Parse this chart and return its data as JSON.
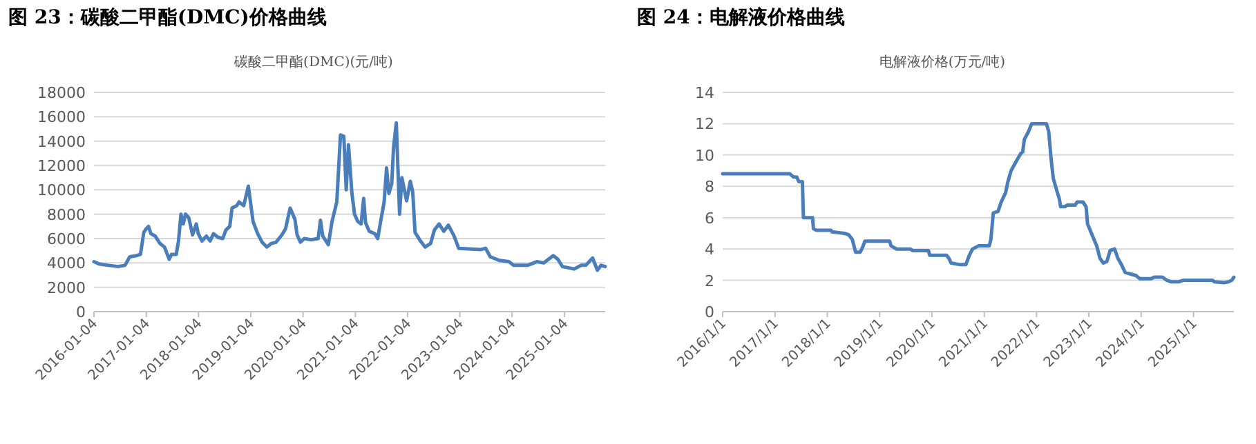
{
  "chart_data": [
    {
      "type": "line",
      "title": "图 23：碳酸二甲酯(DMC)价格曲线",
      "subtitle": "碳酸二甲酯(DMC)(元/吨)",
      "grid": "y",
      "color": "#4a7ebb",
      "x": [
        "2016-01-04",
        "2016-02-12",
        "2016-04-16",
        "2016-06-20",
        "2016-08-08",
        "2016-09-10",
        "2016-10-29",
        "2016-11-24",
        "2016-12-17",
        "2017-01-03",
        "2017-01-19",
        "2017-02-05",
        "2017-03-07",
        "2017-04-09",
        "2017-05-11",
        "2017-05-27",
        "2017-06-13",
        "2017-06-29",
        "2017-08-01",
        "2017-08-17",
        "2017-09-03",
        "2017-09-19",
        "2017-10-05",
        "2017-10-28",
        "2017-11-23",
        "2017-12-19",
        "2018-01-02",
        "2018-01-28",
        "2018-02-28",
        "2018-03-26",
        "2018-04-18",
        "2018-05-20",
        "2018-06-22",
        "2018-07-14",
        "2018-08-10",
        "2018-08-26",
        "2018-09-28",
        "2018-10-14",
        "2018-11-16",
        "2018-12-02",
        "2018-12-18",
        "2019-01-04",
        "2019-01-20",
        "2019-02-21",
        "2019-03-24",
        "2019-04-26",
        "2019-05-28",
        "2019-06-30",
        "2019-08-09",
        "2019-09-04",
        "2019-10-06",
        "2019-11-08",
        "2019-11-24",
        "2019-12-17",
        "2020-01-13",
        "2020-03-01",
        "2020-04-19",
        "2020-05-05",
        "2020-05-21",
        "2020-06-29",
        "2020-07-25",
        "2020-08-27",
        "2020-09-22",
        "2020-10-15",
        "2020-11-01",
        "2020-11-17",
        "2020-12-10",
        "2020-12-29",
        "2021-01-21",
        "2021-02-13",
        "2021-03-03",
        "2021-03-16",
        "2021-04-11",
        "2021-05-20",
        "2021-06-09",
        "2021-07-01",
        "2021-07-24",
        "2021-08-10",
        "2021-08-26",
        "2021-09-15",
        "2021-09-28",
        "2021-10-17",
        "2021-11-09",
        "2021-11-25",
        "2021-12-28",
        "2022-01-23",
        "2022-02-09",
        "2022-02-25",
        "2022-04-04",
        "2022-05-06",
        "2022-06-14",
        "2022-07-10",
        "2022-08-12",
        "2022-09-14",
        "2022-10-16",
        "2022-11-25",
        "2022-12-27",
        "2023-06-01",
        "2023-07-03",
        "2023-08-05",
        "2023-10-09",
        "2023-12-13",
        "2024-01-15",
        "2024-04-21",
        "2024-06-25",
        "2024-08-13",
        "2024-09-15",
        "2024-10-18",
        "2024-11-19",
        "2024-12-21",
        "2025-03-12",
        "2025-04-30",
        "2025-06-02",
        "2025-07-20",
        "2025-08-22",
        "2025-09-17",
        "2025-10-16"
      ],
      "values": [
        4100,
        3900,
        3800,
        3700,
        3800,
        4500,
        4600,
        4700,
        6500,
        6800,
        7000,
        6400,
        6200,
        5600,
        5300,
        4800,
        4300,
        4700,
        4700,
        5800,
        8000,
        7200,
        8000,
        7700,
        6300,
        7200,
        6400,
        5800,
        6200,
        5800,
        6400,
        6100,
        6000,
        6700,
        7000,
        8500,
        8700,
        9000,
        8700,
        9500,
        10300,
        8800,
        7400,
        6400,
        5700,
        5300,
        5600,
        5700,
        6300,
        6800,
        8500,
        7600,
        6300,
        5700,
        6000,
        5900,
        6000,
        7500,
        6200,
        5500,
        7400,
        9000,
        14500,
        14400,
        10000,
        13700,
        9800,
        8000,
        7400,
        7200,
        9300,
        7300,
        6600,
        6400,
        6000,
        7500,
        9000,
        11800,
        9700,
        10500,
        13500,
        15500,
        8000,
        11000,
        9100,
        10700,
        9800,
        6500,
        5800,
        5300,
        5600,
        6700,
        7200,
        6600,
        7100,
        6200,
        5200,
        5100,
        5200,
        4500,
        4200,
        4100,
        3800,
        3800,
        4100,
        4000,
        4300,
        4600,
        4300,
        3700,
        3500,
        3800,
        3800,
        4400,
        3400,
        3800,
        3700
      ],
      "xlim": [
        "2016-01-04",
        "2025-10-16"
      ],
      "ylim": [
        0,
        18000
      ],
      "yticks": [
        0,
        2000,
        4000,
        6000,
        8000,
        10000,
        12000,
        14000,
        16000,
        18000
      ],
      "xticks": [
        {
          "value": "2016-01-04",
          "label": "2016-01-04"
        },
        {
          "value": "2017-01-04",
          "label": "2017-01-04"
        },
        {
          "value": "2018-01-04",
          "label": "2018-01-04"
        },
        {
          "value": "2019-01-04",
          "label": "2019-01-04"
        },
        {
          "value": "2020-01-04",
          "label": "2020-01-04"
        },
        {
          "value": "2021-01-04",
          "label": "2021-01-04"
        },
        {
          "value": "2022-01-04",
          "label": "2022-01-04"
        },
        {
          "value": "2023-01-04",
          "label": "2023-01-04"
        },
        {
          "value": "2024-01-04",
          "label": "2024-01-04"
        },
        {
          "value": "2025-01-04",
          "label": "2025-01-04"
        }
      ]
    },
    {
      "type": "line",
      "title": "图 24：电解液价格曲线",
      "subtitle": "电解液价格(万元/吨)",
      "grid": "y",
      "color": "#4a7ebb",
      "x": [
        "2016-01-01",
        "2017-04-14",
        "2017-05-09",
        "2017-06-01",
        "2017-06-16",
        "2017-07-11",
        "2017-07-18",
        "2017-09-20",
        "2017-09-26",
        "2017-10-15",
        "2018-01-26",
        "2018-02-02",
        "2018-04-30",
        "2018-05-31",
        "2018-06-25",
        "2018-07-17",
        "2018-08-19",
        "2018-09-04",
        "2018-09-20",
        "2019-03-12",
        "2019-03-22",
        "2019-04-29",
        "2019-08-03",
        "2019-08-19",
        "2019-12-08",
        "2019-12-17",
        "2020-04-13",
        "2020-04-29",
        "2020-05-14",
        "2020-07-17",
        "2020-08-25",
        "2020-09-19",
        "2020-10-11",
        "2020-11-22",
        "2021-02-04",
        "2021-02-16",
        "2021-03-05",
        "2021-04-07",
        "2021-04-29",
        "2021-05-30",
        "2021-06-15",
        "2021-07-07",
        "2021-08-12",
        "2021-09-13",
        "2021-09-26",
        "2021-10-08",
        "2021-11-06",
        "2021-11-28",
        "2022-03-11",
        "2022-03-27",
        "2022-04-12",
        "2022-04-28",
        "2022-05-20",
        "2022-06-09",
        "2022-06-18",
        "2022-07-17",
        "2022-08-02",
        "2022-09-28",
        "2022-10-11",
        "2022-11-21",
        "2022-12-13",
        "2022-12-23",
        "2023-01-24",
        "2023-02-25",
        "2023-03-20",
        "2023-04-12",
        "2023-05-07",
        "2023-05-30",
        "2023-06-30",
        "2023-07-23",
        "2023-08-17",
        "2023-09-12",
        "2023-10-20",
        "2023-11-28",
        "2023-12-23",
        "2024-03-11",
        "2024-04-02",
        "2024-05-29",
        "2024-06-30",
        "2024-08-01",
        "2024-09-18",
        "2024-10-20",
        "2025-05-13",
        "2025-05-29",
        "2025-08-01",
        "2025-09-02",
        "2025-09-25",
        "2025-10-10"
      ],
      "values": [
        8.8,
        8.8,
        8.6,
        8.6,
        8.3,
        8.3,
        6.0,
        6.0,
        5.3,
        5.2,
        5.2,
        5.1,
        5.0,
        4.9,
        4.6,
        3.8,
        3.8,
        4.1,
        4.5,
        4.5,
        4.2,
        4.0,
        4.0,
        3.9,
        3.9,
        3.6,
        3.6,
        3.4,
        3.1,
        3.0,
        3.0,
        3.6,
        4.0,
        4.2,
        4.2,
        4.6,
        6.3,
        6.4,
        7.0,
        7.6,
        8.3,
        9.0,
        9.6,
        10.1,
        10.2,
        11.0,
        11.5,
        12.0,
        12.0,
        11.5,
        9.8,
        8.5,
        7.8,
        7.2,
        6.7,
        6.7,
        6.8,
        6.8,
        7.0,
        7.0,
        6.7,
        5.6,
        4.9,
        4.2,
        3.4,
        3.1,
        3.2,
        3.9,
        4.0,
        3.4,
        3.0,
        2.5,
        2.4,
        2.3,
        2.1,
        2.1,
        2.2,
        2.2,
        2.0,
        1.9,
        1.9,
        2.0,
        2.0,
        1.9,
        1.85,
        1.9,
        2.0,
        2.2
      ],
      "xlim": [
        "2016-01-01",
        "2025-10-10"
      ],
      "ylim": [
        0,
        14
      ],
      "yticks": [
        0,
        2,
        4,
        6,
        8,
        10,
        12,
        14
      ],
      "xticks": [
        {
          "value": "2016-01-01",
          "label": "2016/1/1"
        },
        {
          "value": "2017-01-01",
          "label": "2017/1/1"
        },
        {
          "value": "2018-01-01",
          "label": "2018/1/1"
        },
        {
          "value": "2019-01-01",
          "label": "2019/1/1"
        },
        {
          "value": "2020-01-01",
          "label": "2020/1/1"
        },
        {
          "value": "2021-01-01",
          "label": "2021/1/1"
        },
        {
          "value": "2022-01-01",
          "label": "2022/1/1"
        },
        {
          "value": "2023-01-01",
          "label": "2023/1/1"
        },
        {
          "value": "2024-01-01",
          "label": "2024/1/1"
        },
        {
          "value": "2025-01-01",
          "label": "2025/1/1"
        }
      ]
    }
  ]
}
